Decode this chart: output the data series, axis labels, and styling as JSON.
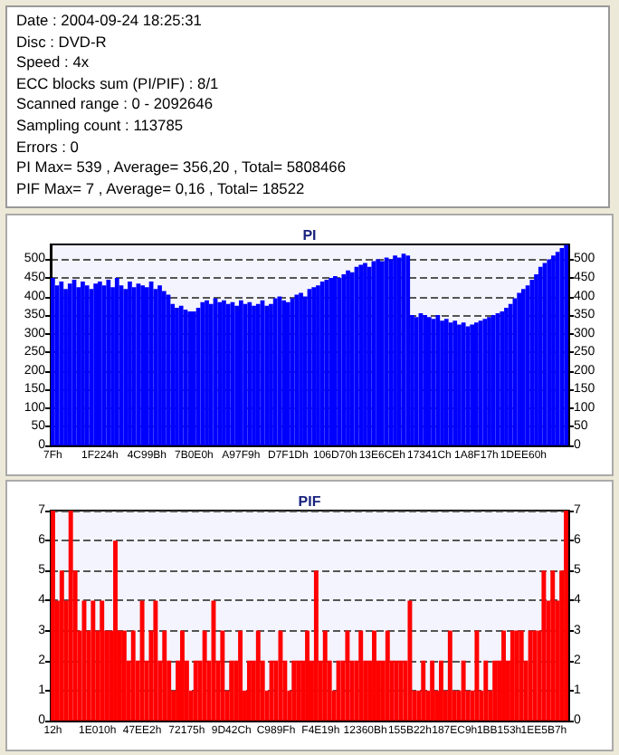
{
  "chart_data": [
    {
      "type": "other",
      "annotations": [
        "Date : 2004-09-24 18:25:31",
        "Disc : DVD-R",
        "Speed : 4x",
        "ECC blocks sum (PI/PIF) : 8/1",
        "Scanned range : 0 - 2092646",
        "Sampling count : 113785",
        "Errors : 0",
        "PI Max= 539 , Average= 356,20 , Total= 5808466",
        "PIF Max= 7 , Average= 0,16 , Total= 18522"
      ]
    },
    {
      "type": "bar",
      "title": "PI",
      "color": "#0000ff",
      "grid": "y",
      "ylim": [
        0,
        540
      ],
      "yticks": [
        0,
        50,
        100,
        150,
        200,
        250,
        300,
        350,
        400,
        450,
        500
      ],
      "y2lim": [
        0,
        540
      ],
      "y2ticks": [
        0,
        50,
        100,
        150,
        200,
        250,
        300,
        350,
        400,
        450,
        500
      ],
      "categories": [
        "7Fh",
        null,
        null,
        null,
        null,
        null,
        null,
        null,
        null,
        null,
        null,
        "1F224h",
        null,
        null,
        null,
        null,
        null,
        null,
        null,
        null,
        null,
        null,
        "4C99Bh",
        null,
        null,
        null,
        null,
        null,
        null,
        null,
        null,
        null,
        null,
        "7B0E0h",
        null,
        null,
        null,
        null,
        null,
        null,
        null,
        null,
        null,
        null,
        "A97F9h",
        null,
        null,
        null,
        null,
        null,
        null,
        null,
        null,
        null,
        null,
        "D7F1Dh",
        null,
        null,
        null,
        null,
        null,
        null,
        null,
        null,
        null,
        null,
        "106D70h",
        null,
        null,
        null,
        null,
        null,
        null,
        null,
        null,
        null,
        null,
        "13E6CEh",
        null,
        null,
        null,
        null,
        null,
        null,
        null,
        null,
        null,
        null,
        "17341Ch",
        null,
        null,
        null,
        null,
        null,
        null,
        null,
        null,
        null,
        null,
        "1A8F17h",
        null,
        null,
        null,
        null,
        null,
        null,
        null,
        null,
        null,
        null,
        "1DEE60h",
        null,
        null,
        null,
        null,
        null,
        null,
        null,
        null,
        null,
        null
      ],
      "values": [
        450,
        430,
        440,
        420,
        435,
        445,
        425,
        440,
        430,
        420,
        435,
        440,
        430,
        445,
        425,
        450,
        430,
        420,
        440,
        425,
        435,
        430,
        425,
        440,
        420,
        430,
        415,
        405,
        380,
        370,
        375,
        365,
        360,
        360,
        370,
        385,
        390,
        380,
        395,
        385,
        390,
        380,
        385,
        375,
        390,
        380,
        385,
        375,
        380,
        390,
        375,
        380,
        395,
        400,
        390,
        385,
        395,
        405,
        410,
        400,
        420,
        425,
        430,
        440,
        445,
        450,
        455,
        450,
        460,
        470,
        465,
        480,
        485,
        490,
        480,
        495,
        500,
        495,
        505,
        500,
        510,
        505,
        515,
        510,
        350,
        345,
        355,
        350,
        345,
        340,
        350,
        335,
        340,
        330,
        335,
        325,
        330,
        320,
        325,
        330,
        335,
        340,
        345,
        350,
        355,
        360,
        370,
        380,
        395,
        410,
        420,
        430,
        445,
        460,
        480,
        490,
        500,
        510,
        520,
        530,
        539
      ]
    },
    {
      "type": "bar",
      "title": "PIF",
      "color": "#ff0000",
      "grid": "y",
      "ylim": [
        0,
        7
      ],
      "yticks": [
        0,
        1,
        2,
        3,
        4,
        5,
        6,
        7
      ],
      "y2lim": [
        0,
        7
      ],
      "y2ticks": [
        0,
        1,
        2,
        3,
        4,
        5,
        6,
        7
      ],
      "categories": [
        "12h",
        null,
        null,
        null,
        null,
        null,
        null,
        null,
        null,
        null,
        "1E010h",
        null,
        null,
        null,
        null,
        null,
        null,
        null,
        null,
        null,
        "47EE2h",
        null,
        null,
        null,
        null,
        null,
        null,
        null,
        null,
        null,
        "72175h",
        null,
        null,
        null,
        null,
        null,
        null,
        null,
        null,
        null,
        "9D42Ch",
        null,
        null,
        null,
        null,
        null,
        null,
        null,
        null,
        null,
        "C989Fh",
        null,
        null,
        null,
        null,
        null,
        null,
        null,
        null,
        null,
        "F4E19h",
        null,
        null,
        null,
        null,
        null,
        null,
        null,
        null,
        null,
        "12360Bh",
        null,
        null,
        null,
        null,
        null,
        null,
        null,
        null,
        null,
        "155B22h",
        null,
        null,
        null,
        null,
        null,
        null,
        null,
        null,
        null,
        "187EC9h",
        null,
        null,
        null,
        null,
        null,
        null,
        null,
        null,
        null,
        "1BB153h",
        null,
        null,
        null,
        null,
        null,
        null,
        null,
        null,
        null,
        "1EE5B7h",
        null,
        null,
        null,
        null,
        null
      ],
      "values": [
        7,
        4,
        5,
        4,
        7,
        5,
        3,
        4,
        3,
        4,
        3,
        4,
        3,
        3,
        6,
        3,
        3,
        2,
        3,
        2,
        4,
        2,
        3,
        4,
        2,
        3,
        2,
        1,
        2,
        3,
        2,
        1,
        2,
        2,
        3,
        2,
        4,
        2,
        3,
        1,
        2,
        2,
        3,
        1,
        2,
        2,
        3,
        2,
        1,
        2,
        2,
        3,
        2,
        1,
        2,
        2,
        2,
        3,
        2,
        5,
        2,
        3,
        2,
        1,
        2,
        2,
        3,
        2,
        2,
        3,
        2,
        2,
        3,
        2,
        2,
        3,
        2,
        2,
        2,
        2,
        4,
        1,
        1,
        2,
        1,
        2,
        1,
        2,
        1,
        3,
        1,
        1,
        2,
        1,
        1,
        3,
        1,
        2,
        1,
        2,
        2,
        3,
        2,
        3,
        3,
        3,
        2,
        3,
        3,
        3,
        5,
        4,
        5,
        4,
        5,
        7
      ]
    }
  ]
}
